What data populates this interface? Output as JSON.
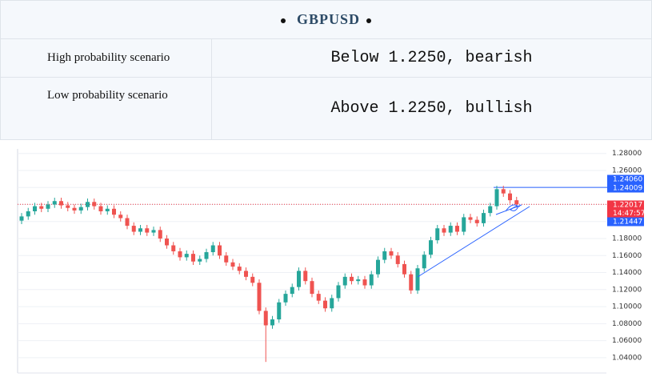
{
  "header": {
    "title": "GBPUSD"
  },
  "table": {
    "rows": [
      [
        "High probability scenario",
        "Below 1.2250, bearish"
      ],
      [
        "Low probability scenario",
        "Above 1.2250, bullish"
      ]
    ]
  },
  "chart_data": {
    "type": "candlestick",
    "open": [
      1.201,
      1.206,
      1.212,
      1.218,
      1.215,
      1.22,
      1.224,
      1.219,
      1.216,
      1.213,
      1.217,
      1.223,
      1.218,
      1.212,
      1.215,
      1.208,
      1.204,
      1.195,
      1.188,
      1.192,
      1.187,
      1.19,
      1.18,
      1.172,
      1.165,
      1.158,
      1.162,
      1.153,
      1.156,
      1.164,
      1.172,
      1.16,
      1.152,
      1.147,
      1.142,
      1.135,
      1.128,
      1.095,
      1.078,
      1.085,
      1.105,
      1.115,
      1.123,
      1.142,
      1.13,
      1.115,
      1.107,
      1.098,
      1.11,
      1.125,
      1.135,
      1.13,
      1.132,
      1.125,
      1.138,
      1.155,
      1.165,
      1.16,
      1.15,
      1.138,
      1.119,
      1.145,
      1.161,
      1.178,
      1.192,
      1.187,
      1.195,
      1.188,
      1.205,
      1.202,
      1.198,
      1.21,
      1.218,
      1.238,
      1.233,
      1.225
    ],
    "high": [
      1.21,
      1.216,
      1.222,
      1.222,
      1.224,
      1.228,
      1.228,
      1.223,
      1.22,
      1.221,
      1.227,
      1.227,
      1.222,
      1.219,
      1.219,
      1.212,
      1.208,
      1.199,
      1.196,
      1.196,
      1.194,
      1.194,
      1.184,
      1.176,
      1.169,
      1.166,
      1.166,
      1.16,
      1.168,
      1.176,
      1.176,
      1.164,
      1.156,
      1.151,
      1.146,
      1.139,
      1.132,
      1.099,
      1.089,
      1.109,
      1.119,
      1.127,
      1.146,
      1.146,
      1.134,
      1.119,
      1.111,
      1.114,
      1.129,
      1.139,
      1.139,
      1.136,
      1.136,
      1.142,
      1.159,
      1.169,
      1.169,
      1.164,
      1.154,
      1.142,
      1.149,
      1.165,
      1.182,
      1.196,
      1.196,
      1.199,
      1.199,
      1.209,
      1.209,
      1.206,
      1.214,
      1.222,
      1.242,
      1.242,
      1.237,
      1.229
    ],
    "low": [
      1.197,
      1.202,
      1.208,
      1.211,
      1.211,
      1.216,
      1.215,
      1.212,
      1.209,
      1.209,
      1.213,
      1.214,
      1.208,
      1.208,
      1.204,
      1.2,
      1.191,
      1.184,
      1.184,
      1.183,
      1.183,
      1.176,
      1.168,
      1.161,
      1.154,
      1.154,
      1.149,
      1.149,
      1.152,
      1.16,
      1.156,
      1.148,
      1.143,
      1.138,
      1.131,
      1.124,
      1.091,
      1.035,
      1.074,
      1.081,
      1.101,
      1.111,
      1.119,
      1.126,
      1.111,
      1.103,
      1.094,
      1.094,
      1.106,
      1.121,
      1.126,
      1.126,
      1.121,
      1.121,
      1.134,
      1.151,
      1.156,
      1.146,
      1.134,
      1.115,
      1.115,
      1.141,
      1.157,
      1.174,
      1.183,
      1.183,
      1.184,
      1.184,
      1.198,
      1.194,
      1.194,
      1.206,
      1.214,
      1.229,
      1.221,
      1.2162
    ],
    "close": [
      1.206,
      1.212,
      1.218,
      1.215,
      1.22,
      1.224,
      1.219,
      1.216,
      1.213,
      1.217,
      1.223,
      1.218,
      1.212,
      1.215,
      1.208,
      1.204,
      1.195,
      1.188,
      1.192,
      1.187,
      1.19,
      1.18,
      1.172,
      1.165,
      1.158,
      1.162,
      1.153,
      1.156,
      1.164,
      1.172,
      1.16,
      1.152,
      1.147,
      1.142,
      1.135,
      1.128,
      1.095,
      1.078,
      1.085,
      1.105,
      1.115,
      1.123,
      1.142,
      1.13,
      1.115,
      1.107,
      1.098,
      1.11,
      1.125,
      1.135,
      1.13,
      1.132,
      1.125,
      1.138,
      1.155,
      1.165,
      1.16,
      1.15,
      1.138,
      1.119,
      1.145,
      1.161,
      1.178,
      1.192,
      1.187,
      1.195,
      1.188,
      1.205,
      1.202,
      1.198,
      1.21,
      1.218,
      1.238,
      1.233,
      1.225,
      1.2202
    ],
    "up_color": "#26a69a",
    "down_color": "#ef5350",
    "ylim": [
      1.022,
      1.291
    ],
    "yticks": [
      {
        "value": 1.04,
        "label": "1.04000"
      },
      {
        "value": 1.06,
        "label": "1.06000"
      },
      {
        "value": 1.08,
        "label": "1.08000"
      },
      {
        "value": 1.1,
        "label": "1.10000"
      },
      {
        "value": 1.12,
        "label": "1.12000"
      },
      {
        "value": 1.14,
        "label": "1.14000"
      },
      {
        "value": 1.16,
        "label": "1.16000"
      },
      {
        "value": 1.18,
        "label": "1.18000"
      },
      {
        "value": 1.2,
        "label": "1.20000"
      },
      {
        "value": 1.22,
        "label": "1.22000"
      },
      {
        "value": 1.24,
        "label": "1.24000"
      },
      {
        "value": 1.26,
        "label": "1.26000"
      },
      {
        "value": 1.28,
        "label": "1.28000"
      }
    ],
    "grid": true,
    "price_labels": [
      {
        "value": 1.2406,
        "label": "1.24060",
        "color": "#2962ff"
      },
      {
        "value": 1.24009,
        "label": "1.24009",
        "color": "#2962ff"
      },
      {
        "value": 1.22017,
        "label": "1.22017",
        "color": "#f23645"
      },
      {
        "value": 1.21447,
        "label": "1.21447",
        "color": "#2962ff"
      }
    ],
    "time_label": "14:47:57"
  }
}
